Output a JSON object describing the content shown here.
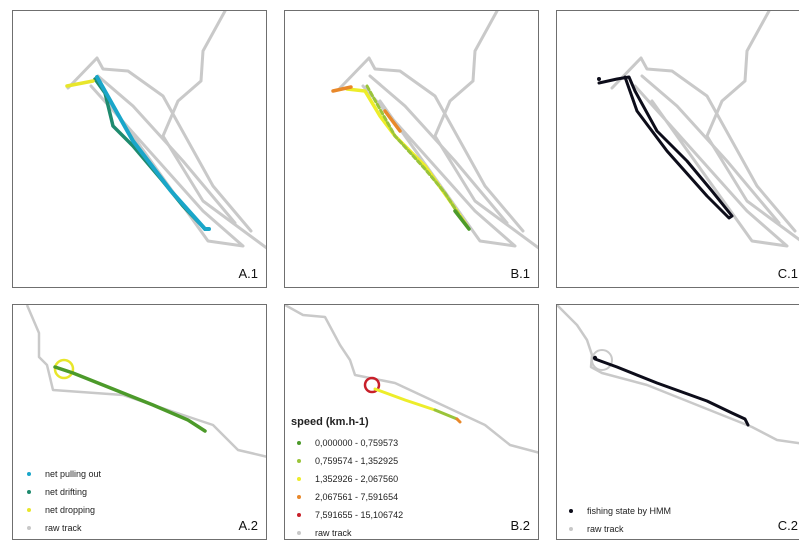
{
  "panels": {
    "a1": {
      "label": "A.1"
    },
    "b1": {
      "label": "B.1"
    },
    "c1": {
      "label": "C.1"
    },
    "a2": {
      "label": "A.2"
    },
    "b2": {
      "label": "B.2"
    },
    "c2": {
      "label": "C.2"
    }
  },
  "legend_a": {
    "items": [
      {
        "label": "net pulling out",
        "color": "#1aa6c9"
      },
      {
        "label": "net drifting",
        "color": "#1e8a6e"
      },
      {
        "label": "net dropping",
        "color": "#e8e62a"
      },
      {
        "label": "raw track",
        "color": "#c8c8c8"
      }
    ]
  },
  "legend_b": {
    "title": "speed (km.h-1)",
    "items": [
      {
        "label": "0,000000 - 0,759573",
        "color": "#4c9a2a"
      },
      {
        "label": "0,759574 - 1,352925",
        "color": "#9ac43a"
      },
      {
        "label": "1,352926 - 2,067560",
        "color": "#eded2a"
      },
      {
        "label": "2,067561 - 7,591654",
        "color": "#e8882a"
      },
      {
        "label": "7,591655 - 15,106742",
        "color": "#c8202a"
      },
      {
        "label": "raw track",
        "color": "#c8c8c8"
      }
    ]
  },
  "legend_c": {
    "items": [
      {
        "label": "fishing state by HMM",
        "color": "#0d0d1a"
      },
      {
        "label": "raw track",
        "color": "#c8c8c8"
      }
    ]
  }
}
